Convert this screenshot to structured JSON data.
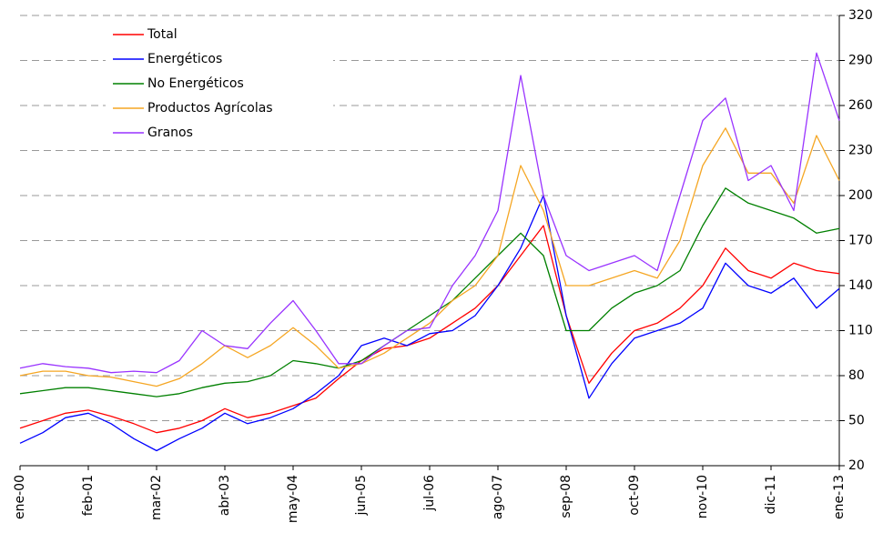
{
  "chart_data": {
    "type": "line",
    "categories": [
      "ene-00",
      null,
      null,
      "feb-01",
      null,
      null,
      "mar-02",
      null,
      null,
      "abr-03",
      null,
      null,
      "may-04",
      null,
      null,
      "jun-05",
      null,
      null,
      "jul-06",
      null,
      null,
      "ago-07",
      null,
      null,
      "sep-08",
      null,
      null,
      "oct-09",
      null,
      null,
      "nov-10",
      null,
      null,
      "dic-11",
      null,
      null,
      "ene-13"
    ],
    "series": [
      {
        "name": "Total",
        "color": "#ff0000",
        "values": [
          45,
          50,
          55,
          57,
          53,
          48,
          42,
          45,
          50,
          58,
          52,
          55,
          60,
          65,
          78,
          90,
          98,
          100,
          105,
          115,
          125,
          140,
          160,
          180,
          120,
          75,
          95,
          110,
          115,
          125,
          140,
          165,
          150,
          145,
          155,
          150,
          148
        ]
      },
      {
        "name": "Energéticos",
        "color": "#0000ff",
        "values": [
          35,
          42,
          52,
          55,
          48,
          38,
          30,
          38,
          45,
          55,
          48,
          52,
          58,
          68,
          80,
          100,
          105,
          100,
          108,
          110,
          120,
          140,
          165,
          200,
          120,
          65,
          88,
          105,
          110,
          115,
          125,
          155,
          140,
          135,
          145,
          125,
          138
        ]
      },
      {
        "name": "No Energéticos",
        "color": "#008000",
        "values": [
          68,
          70,
          72,
          72,
          70,
          68,
          66,
          68,
          72,
          75,
          76,
          80,
          90,
          88,
          85,
          90,
          100,
          110,
          120,
          130,
          145,
          160,
          175,
          160,
          110,
          110,
          125,
          135,
          140,
          150,
          180,
          205,
          195,
          190,
          185,
          175,
          178
        ]
      },
      {
        "name": "Productos Agrícolas",
        "color": "#f5a623",
        "values": [
          80,
          83,
          83,
          80,
          79,
          76,
          73,
          78,
          88,
          100,
          92,
          100,
          112,
          100,
          85,
          88,
          95,
          105,
          115,
          130,
          140,
          160,
          220,
          190,
          140,
          140,
          145,
          150,
          145,
          170,
          220,
          245,
          215,
          215,
          195,
          240,
          210
        ]
      },
      {
        "name": "Granos",
        "color": "#9933ff",
        "values": [
          85,
          88,
          86,
          85,
          82,
          83,
          82,
          90,
          110,
          100,
          98,
          115,
          130,
          110,
          88,
          88,
          100,
          110,
          112,
          140,
          160,
          190,
          280,
          200,
          160,
          150,
          155,
          160,
          150,
          200,
          250,
          265,
          210,
          220,
          190,
          295,
          250
        ]
      }
    ],
    "ylim": [
      20,
      320
    ],
    "yticks": [
      20,
      50,
      80,
      110,
      140,
      170,
      200,
      230,
      260,
      290,
      320
    ],
    "grid": true,
    "legend": "upper left",
    "yaxis_side": "right"
  }
}
